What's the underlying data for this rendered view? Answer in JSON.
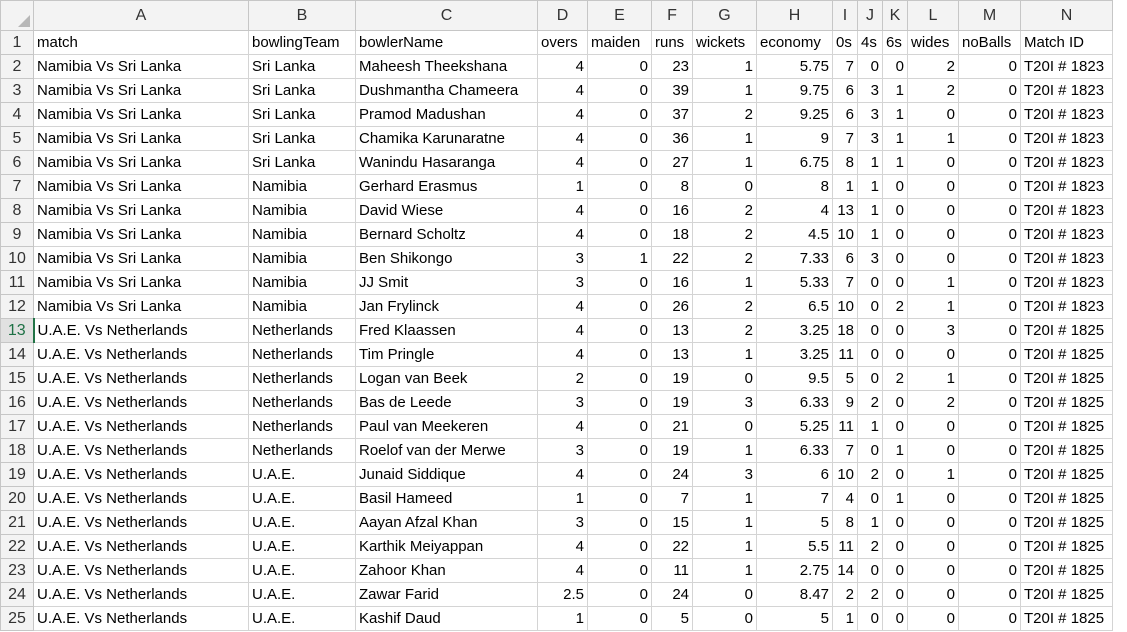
{
  "columns": [
    "A",
    "B",
    "C",
    "D",
    "E",
    "F",
    "G",
    "H",
    "I",
    "J",
    "K",
    "L",
    "M",
    "N"
  ],
  "active_row": 13,
  "numeric_columns": [
    3,
    4,
    5,
    6,
    7,
    8,
    9,
    10,
    11,
    12
  ],
  "rows": [
    [
      "match",
      "bowlingTeam",
      "bowlerName",
      "overs",
      "maiden",
      "runs",
      "wickets",
      "economy",
      "0s",
      "4s",
      "6s",
      "wides",
      "noBalls",
      "Match ID"
    ],
    [
      "Namibia Vs Sri Lanka",
      "Sri Lanka",
      "Maheesh Theekshana",
      "4",
      "0",
      "23",
      "1",
      "5.75",
      "7",
      "0",
      "0",
      "2",
      "0",
      "T20I # 1823"
    ],
    [
      "Namibia Vs Sri Lanka",
      "Sri Lanka",
      "Dushmantha Chameera",
      "4",
      "0",
      "39",
      "1",
      "9.75",
      "6",
      "3",
      "1",
      "2",
      "0",
      "T20I # 1823"
    ],
    [
      "Namibia Vs Sri Lanka",
      "Sri Lanka",
      "Pramod Madushan",
      "4",
      "0",
      "37",
      "2",
      "9.25",
      "6",
      "3",
      "1",
      "0",
      "0",
      "T20I # 1823"
    ],
    [
      "Namibia Vs Sri Lanka",
      "Sri Lanka",
      "Chamika Karunaratne",
      "4",
      "0",
      "36",
      "1",
      "9",
      "7",
      "3",
      "1",
      "1",
      "0",
      "T20I # 1823"
    ],
    [
      "Namibia Vs Sri Lanka",
      "Sri Lanka",
      "Wanindu Hasaranga",
      "4",
      "0",
      "27",
      "1",
      "6.75",
      "8",
      "1",
      "1",
      "0",
      "0",
      "T20I # 1823"
    ],
    [
      "Namibia Vs Sri Lanka",
      "Namibia",
      "Gerhard Erasmus",
      "1",
      "0",
      "8",
      "0",
      "8",
      "1",
      "1",
      "0",
      "0",
      "0",
      "T20I # 1823"
    ],
    [
      "Namibia Vs Sri Lanka",
      "Namibia",
      "David Wiese",
      "4",
      "0",
      "16",
      "2",
      "4",
      "13",
      "1",
      "0",
      "0",
      "0",
      "T20I # 1823"
    ],
    [
      "Namibia Vs Sri Lanka",
      "Namibia",
      "Bernard Scholtz",
      "4",
      "0",
      "18",
      "2",
      "4.5",
      "10",
      "1",
      "0",
      "0",
      "0",
      "T20I # 1823"
    ],
    [
      "Namibia Vs Sri Lanka",
      "Namibia",
      "Ben Shikongo",
      "3",
      "1",
      "22",
      "2",
      "7.33",
      "6",
      "3",
      "0",
      "0",
      "0",
      "T20I # 1823"
    ],
    [
      "Namibia Vs Sri Lanka",
      "Namibia",
      "JJ Smit",
      "3",
      "0",
      "16",
      "1",
      "5.33",
      "7",
      "0",
      "0",
      "1",
      "0",
      "T20I # 1823"
    ],
    [
      "Namibia Vs Sri Lanka",
      "Namibia",
      "Jan Frylinck",
      "4",
      "0",
      "26",
      "2",
      "6.5",
      "10",
      "0",
      "2",
      "1",
      "0",
      "T20I # 1823"
    ],
    [
      "U.A.E. Vs Netherlands",
      "Netherlands",
      "Fred Klaassen",
      "4",
      "0",
      "13",
      "2",
      "3.25",
      "18",
      "0",
      "0",
      "3",
      "0",
      "T20I # 1825"
    ],
    [
      "U.A.E. Vs Netherlands",
      "Netherlands",
      "Tim Pringle",
      "4",
      "0",
      "13",
      "1",
      "3.25",
      "11",
      "0",
      "0",
      "0",
      "0",
      "T20I # 1825"
    ],
    [
      "U.A.E. Vs Netherlands",
      "Netherlands",
      "Logan van Beek",
      "2",
      "0",
      "19",
      "0",
      "9.5",
      "5",
      "0",
      "2",
      "1",
      "0",
      "T20I # 1825"
    ],
    [
      "U.A.E. Vs Netherlands",
      "Netherlands",
      "Bas de Leede",
      "3",
      "0",
      "19",
      "3",
      "6.33",
      "9",
      "2",
      "0",
      "2",
      "0",
      "T20I # 1825"
    ],
    [
      "U.A.E. Vs Netherlands",
      "Netherlands",
      "Paul van Meekeren",
      "4",
      "0",
      "21",
      "0",
      "5.25",
      "11",
      "1",
      "0",
      "0",
      "0",
      "T20I # 1825"
    ],
    [
      "U.A.E. Vs Netherlands",
      "Netherlands",
      "Roelof van der Merwe",
      "3",
      "0",
      "19",
      "1",
      "6.33",
      "7",
      "0",
      "1",
      "0",
      "0",
      "T20I # 1825"
    ],
    [
      "U.A.E. Vs Netherlands",
      "U.A.E.",
      "Junaid Siddique",
      "4",
      "0",
      "24",
      "3",
      "6",
      "10",
      "2",
      "0",
      "1",
      "0",
      "T20I # 1825"
    ],
    [
      "U.A.E. Vs Netherlands",
      "U.A.E.",
      "Basil Hameed",
      "1",
      "0",
      "7",
      "1",
      "7",
      "4",
      "0",
      "1",
      "0",
      "0",
      "T20I # 1825"
    ],
    [
      "U.A.E. Vs Netherlands",
      "U.A.E.",
      "Aayan Afzal Khan",
      "3",
      "0",
      "15",
      "1",
      "5",
      "8",
      "1",
      "0",
      "0",
      "0",
      "T20I # 1825"
    ],
    [
      "U.A.E. Vs Netherlands",
      "U.A.E.",
      "Karthik Meiyappan",
      "4",
      "0",
      "22",
      "1",
      "5.5",
      "11",
      "2",
      "0",
      "0",
      "0",
      "T20I # 1825"
    ],
    [
      "U.A.E. Vs Netherlands",
      "U.A.E.",
      "Zahoor Khan",
      "4",
      "0",
      "11",
      "1",
      "2.75",
      "14",
      "0",
      "0",
      "0",
      "0",
      "T20I # 1825"
    ],
    [
      "U.A.E. Vs Netherlands",
      "U.A.E.",
      "Zawar Farid",
      "2.5",
      "0",
      "24",
      "0",
      "8.47",
      "2",
      "2",
      "0",
      "0",
      "0",
      "T20I # 1825"
    ],
    [
      "U.A.E. Vs Netherlands",
      "U.A.E.",
      "Kashif Daud",
      "1",
      "0",
      "5",
      "0",
      "5",
      "1",
      "0",
      "0",
      "0",
      "0",
      "T20I # 1825"
    ]
  ]
}
